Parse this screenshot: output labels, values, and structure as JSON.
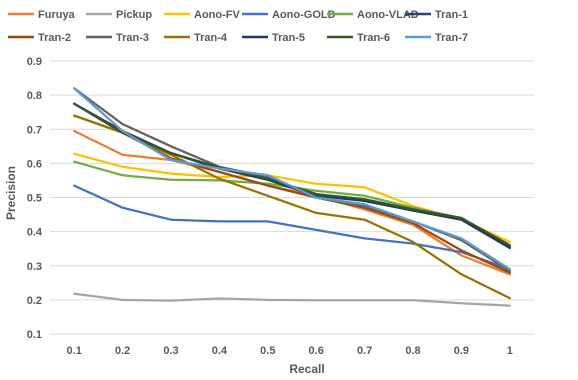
{
  "chart_data": {
    "type": "line",
    "x": [
      0.1,
      0.2,
      0.3,
      0.4,
      0.5,
      0.6,
      0.7,
      0.8,
      0.9,
      1
    ],
    "x_tick_labels": [
      "0.1",
      "0.2",
      "0.3",
      "0.4",
      "0.5",
      "0.6",
      "0.7",
      "0.8",
      "0.9",
      "1"
    ],
    "y_tick_labels": [
      "0.1",
      "0.2",
      "0.3",
      "0.4",
      "0.5",
      "0.6",
      "0.7",
      "0.8",
      "0.9"
    ],
    "xlabel": "Recall",
    "ylabel": "Precision",
    "ylim": [
      0.1,
      0.9
    ],
    "grid": "horizontal",
    "legend_position": "top",
    "series": [
      {
        "name": "Furuya",
        "color": "#ED7D31",
        "values": [
          0.695,
          0.625,
          0.61,
          0.575,
          0.535,
          0.505,
          0.465,
          0.42,
          0.33,
          0.275
        ]
      },
      {
        "name": "Pickup",
        "color": "#A5A5A5",
        "values": [
          0.218,
          0.2,
          0.198,
          0.204,
          0.2,
          0.199,
          0.199,
          0.199,
          0.19,
          0.183
        ]
      },
      {
        "name": "Aono-FV",
        "color": "#FFC000",
        "values": [
          0.628,
          0.59,
          0.57,
          0.56,
          0.565,
          0.54,
          0.53,
          0.475,
          0.435,
          0.37
        ]
      },
      {
        "name": "Aono-GOLD",
        "color": "#4472C4",
        "values": [
          0.535,
          0.47,
          0.435,
          0.43,
          0.43,
          0.405,
          0.38,
          0.365,
          0.34,
          0.29
        ]
      },
      {
        "name": "Aono-VLAD",
        "color": "#70AD47",
        "values": [
          0.605,
          0.565,
          0.552,
          0.55,
          0.54,
          0.52,
          0.505,
          0.47,
          0.44,
          0.36
        ]
      },
      {
        "name": "Tran-1",
        "color": "#264478",
        "values": [
          0.775,
          0.69,
          0.63,
          0.585,
          0.555,
          0.51,
          0.49,
          0.462,
          0.435,
          0.355
        ]
      },
      {
        "name": "Tran-2",
        "color": "#9E480E",
        "values": [
          0.74,
          0.69,
          0.615,
          0.575,
          0.535,
          0.5,
          0.47,
          0.425,
          0.345,
          0.28
        ]
      },
      {
        "name": "Tran-3",
        "color": "#636363",
        "values": [
          0.82,
          0.715,
          0.65,
          0.59,
          0.56,
          0.5,
          0.475,
          0.43,
          0.375,
          0.285
        ]
      },
      {
        "name": "Tran-4",
        "color": "#997300",
        "values": [
          0.74,
          0.69,
          0.625,
          0.555,
          0.505,
          0.455,
          0.435,
          0.37,
          0.275,
          0.205
        ]
      },
      {
        "name": "Tran-5",
        "color": "#203864",
        "values": [
          0.775,
          0.695,
          0.63,
          0.585,
          0.552,
          0.505,
          0.49,
          0.462,
          0.435,
          0.352
        ]
      },
      {
        "name": "Tran-6",
        "color": "#375623",
        "values": [
          0.775,
          0.69,
          0.63,
          0.588,
          0.555,
          0.51,
          0.495,
          0.465,
          0.44,
          0.36
        ]
      },
      {
        "name": "Tran-7",
        "color": "#5B9BD5",
        "values": [
          0.82,
          0.695,
          0.61,
          0.585,
          0.565,
          0.5,
          0.48,
          0.43,
          0.38,
          0.29
        ]
      }
    ]
  }
}
